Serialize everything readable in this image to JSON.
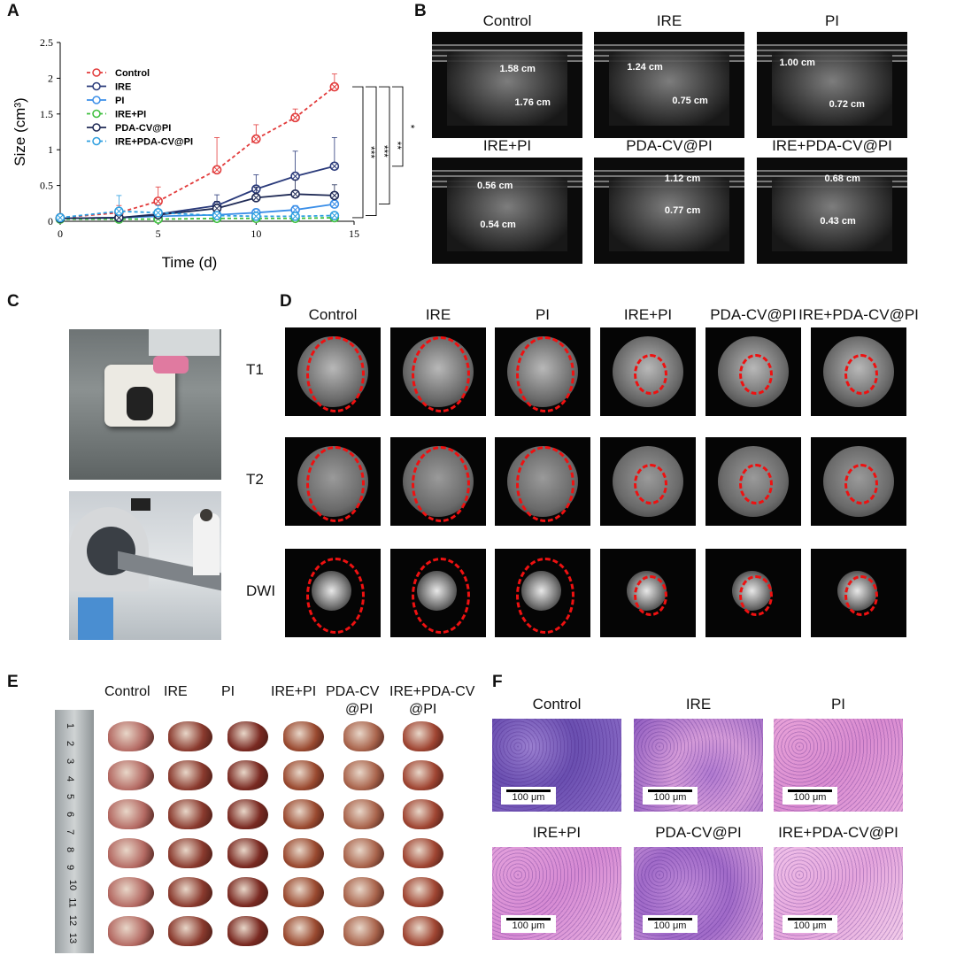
{
  "panel_labels": {
    "a": "A",
    "b": "B",
    "c": "C",
    "d": "D",
    "e": "E",
    "f": "F"
  },
  "chart_data": {
    "type": "line",
    "xlabel": "Time (d)",
    "ylabel": "Size (cm³)",
    "xlim": [
      0,
      15
    ],
    "ylim": [
      0,
      2.5
    ],
    "xticks": [
      "0",
      "5",
      "10",
      "15"
    ],
    "yticks": [
      "0",
      "0.5",
      "1",
      "1.5",
      "2",
      "2.5"
    ],
    "legend_position": "top-left",
    "series": [
      {
        "name": "Control",
        "color": "#e23b3b",
        "dash": true,
        "x": [
          0,
          3,
          5,
          8,
          10,
          12,
          14
        ],
        "y": [
          0.05,
          0.12,
          0.28,
          0.72,
          1.15,
          1.45,
          1.88
        ],
        "err": [
          0.02,
          0.1,
          0.2,
          0.45,
          0.2,
          0.12,
          0.18
        ]
      },
      {
        "name": "IRE",
        "color": "#2a3a7a",
        "dash": false,
        "x": [
          0,
          3,
          5,
          8,
          10,
          12,
          14
        ],
        "y": [
          0.04,
          0.05,
          0.1,
          0.22,
          0.45,
          0.63,
          0.77
        ],
        "err": [
          0.01,
          0.03,
          0.05,
          0.15,
          0.2,
          0.35,
          0.4
        ]
      },
      {
        "name": "PI",
        "color": "#3a8ee8",
        "dash": false,
        "x": [
          0,
          3,
          5,
          8,
          10,
          12,
          14
        ],
        "y": [
          0.04,
          0.05,
          0.07,
          0.09,
          0.12,
          0.16,
          0.24
        ],
        "err": [
          0.01,
          0.02,
          0.03,
          0.04,
          0.05,
          0.06,
          0.08
        ]
      },
      {
        "name": "IRE+PI",
        "color": "#3fbf3f",
        "dash": true,
        "x": [
          0,
          3,
          5,
          8,
          10,
          12,
          14
        ],
        "y": [
          0.03,
          0.03,
          0.03,
          0.04,
          0.04,
          0.04,
          0.05
        ],
        "err": [
          0.01,
          0.01,
          0.01,
          0.01,
          0.02,
          0.02,
          0.02
        ]
      },
      {
        "name": "PDA-CV@PI",
        "color": "#1f2a55",
        "dash": false,
        "x": [
          0,
          3,
          5,
          8,
          10,
          12,
          14
        ],
        "y": [
          0.04,
          0.05,
          0.09,
          0.18,
          0.33,
          0.38,
          0.36
        ],
        "err": [
          0.01,
          0.03,
          0.05,
          0.1,
          0.15,
          0.2,
          0.15
        ]
      },
      {
        "name": "IRE+PDA-CV@PI",
        "color": "#2e9fe0",
        "dash": true,
        "x": [
          0,
          3,
          5,
          8,
          10,
          12,
          14
        ],
        "y": [
          0.05,
          0.14,
          0.12,
          0.08,
          0.07,
          0.07,
          0.08
        ],
        "err": [
          0.02,
          0.22,
          0.1,
          0.05,
          0.04,
          0.04,
          0.04
        ]
      }
    ],
    "significance": [
      "***",
      "***",
      "**",
      "*"
    ]
  },
  "ultrasound": {
    "titles": [
      "Control",
      "IRE",
      "PI",
      "IRE+PI",
      "PDA-CV@PI",
      "IRE+PDA-CV@PI"
    ],
    "measurements": [
      [
        "1.58 cm",
        "1.76 cm"
      ],
      [
        "1.24 cm",
        "0.75 cm"
      ],
      [
        "1.00 cm",
        "0.72 cm"
      ],
      [
        "0.56 cm",
        "0.54 cm"
      ],
      [
        "1.12 cm",
        "0.77 cm"
      ],
      [
        "0.68 cm",
        "0.43 cm"
      ]
    ]
  },
  "mri": {
    "columns": [
      "Control",
      "IRE",
      "PI",
      "IRE+PI",
      "PDA-CV@PI",
      "IRE+PDA-CV@PI"
    ],
    "rows": [
      "T1",
      "T2",
      "DWI"
    ]
  },
  "tumors": {
    "columns": [
      "Control",
      "IRE",
      "PI",
      "IRE+PI",
      "PDA-CV\n@PI",
      "IRE+PDA-CV\n@PI"
    ],
    "ruler_marks": [
      "1",
      "2",
      "3",
      "4",
      "5",
      "6",
      "7",
      "8",
      "9",
      "10",
      "11",
      "12",
      "13"
    ]
  },
  "histology": {
    "titles": [
      "Control",
      "IRE",
      "PI",
      "IRE+PI",
      "PDA-CV@PI",
      "IRE+PDA-CV@PI"
    ],
    "scale_label": "100 μm"
  }
}
